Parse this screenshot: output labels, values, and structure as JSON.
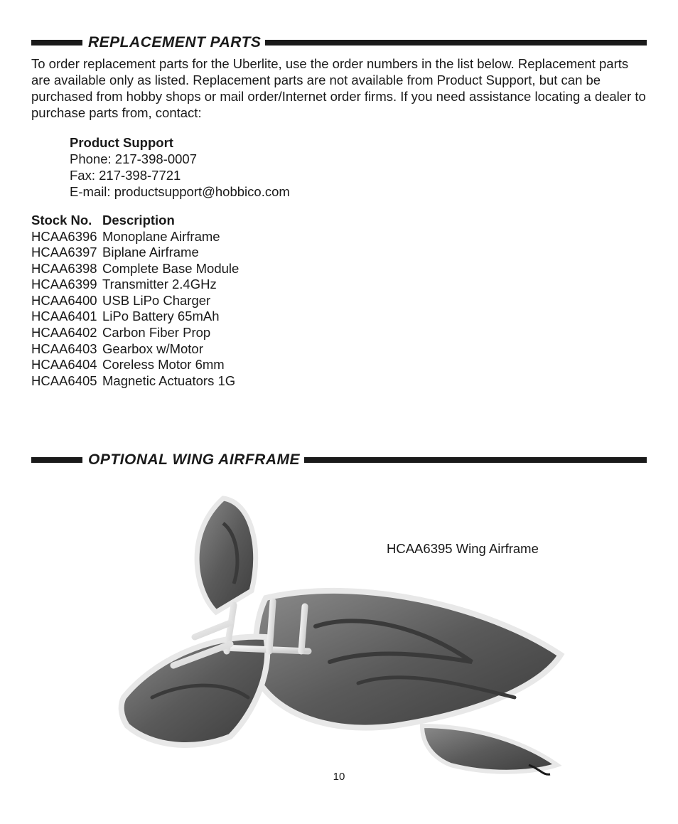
{
  "page_number": "10",
  "colors": {
    "text": "#1a1a1a",
    "bar": "#1a1a1a",
    "bg": "#ffffff",
    "wing_fill": "#6b6b6b",
    "wing_dark": "#4a4a4a",
    "wing_light": "#e8e8e8",
    "wing_strut": "#f5f5f5"
  },
  "section1": {
    "title": "REPLACEMENT PARTS",
    "intro": "To order replacement parts for the Uberlite, use the order numbers in the list below. Replacement parts are available only as listed. Replacement parts are not available from Product Support, but can be purchased from hobby shops or mail order/Internet order firms. If you need assistance locating a dealer to purchase parts from, contact:",
    "support": {
      "heading": "Product Support",
      "phone": "Phone: 217-398-0007",
      "fax": "Fax: 217-398-7721",
      "email": "E-mail: productsupport@hobbico.com"
    },
    "table": {
      "col1": "Stock No.",
      "col2": "Description",
      "rows": [
        {
          "sku": "HCAA6396",
          "desc": "Monoplane Airframe"
        },
        {
          "sku": "HCAA6397",
          "desc": "Biplane Airframe"
        },
        {
          "sku": "HCAA6398",
          "desc": "Complete Base Module"
        },
        {
          "sku": "HCAA6399",
          "desc": "Transmitter 2.4GHz"
        },
        {
          "sku": "HCAA6400",
          "desc": "USB LiPo Charger"
        },
        {
          "sku": "HCAA6401",
          "desc": "LiPo Battery 65mAh"
        },
        {
          "sku": "HCAA6402",
          "desc": "Carbon Fiber Prop"
        },
        {
          "sku": "HCAA6403",
          "desc": "Gearbox w/Motor"
        },
        {
          "sku": "HCAA6404",
          "desc": "Coreless Motor 6mm"
        },
        {
          "sku": "HCAA6405",
          "desc": "Magnetic Actuators 1G"
        }
      ]
    }
  },
  "section2": {
    "title": "OPTIONAL WING AIRFRAME",
    "caption": "HCAA6395 Wing Airframe"
  }
}
